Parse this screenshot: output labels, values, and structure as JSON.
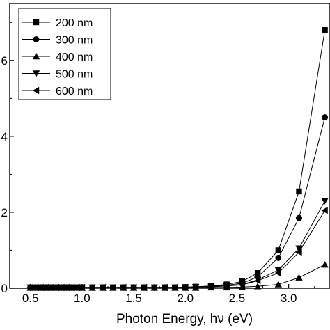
{
  "chart_data": {
    "type": "line",
    "xlabel": "Photon Energy, hν (eV)",
    "ylabel": "",
    "xlim": [
      0.3,
      3.4
    ],
    "ylim": [
      0,
      7.5
    ],
    "x_ticks": [
      0.5,
      1.0,
      1.5,
      2.0,
      2.5,
      3.0
    ],
    "x_tick_labels": [
      "0.5",
      "1.0",
      "1.5",
      "2.0",
      "2.5",
      "3.0"
    ],
    "y_ticks": [
      0,
      2,
      4,
      6
    ],
    "y_tick_labels": [
      "0",
      "2",
      "4",
      "6"
    ],
    "grid": false,
    "legend_position": "top-left",
    "series": [
      {
        "name": "200 nm",
        "marker": "square",
        "x": [
          0.5,
          0.55,
          0.6,
          0.65,
          0.7,
          0.75,
          0.8,
          0.85,
          0.9,
          0.95,
          1.0,
          1.1,
          1.2,
          1.3,
          1.4,
          1.5,
          1.6,
          1.7,
          1.8,
          1.9,
          2.0,
          2.1,
          2.25,
          2.4,
          2.55,
          2.7,
          2.9,
          3.1,
          3.35
        ],
        "y": [
          0.02,
          0.02,
          0.02,
          0.02,
          0.02,
          0.02,
          0.02,
          0.02,
          0.02,
          0.02,
          0.02,
          0.02,
          0.02,
          0.02,
          0.02,
          0.02,
          0.02,
          0.02,
          0.02,
          0.02,
          0.03,
          0.04,
          0.06,
          0.1,
          0.18,
          0.4,
          1.0,
          2.55,
          6.8
        ]
      },
      {
        "name": "300 nm",
        "marker": "circle",
        "x": [
          0.5,
          0.55,
          0.6,
          0.65,
          0.7,
          0.75,
          0.8,
          0.85,
          0.9,
          0.95,
          1.0,
          1.1,
          1.2,
          1.3,
          1.4,
          1.5,
          1.6,
          1.7,
          1.8,
          1.9,
          2.0,
          2.1,
          2.25,
          2.4,
          2.55,
          2.7,
          2.9,
          3.1,
          3.35
        ],
        "y": [
          0.02,
          0.02,
          0.02,
          0.02,
          0.02,
          0.02,
          0.02,
          0.02,
          0.02,
          0.02,
          0.02,
          0.02,
          0.02,
          0.02,
          0.02,
          0.02,
          0.02,
          0.02,
          0.02,
          0.02,
          0.02,
          0.03,
          0.05,
          0.08,
          0.13,
          0.3,
          0.8,
          1.85,
          4.5
        ]
      },
      {
        "name": "400 nm",
        "marker": "triangle-up",
        "x": [
          0.5,
          0.55,
          0.6,
          0.65,
          0.7,
          0.75,
          0.8,
          0.85,
          0.9,
          0.95,
          1.0,
          1.1,
          1.2,
          1.3,
          1.4,
          1.5,
          1.6,
          1.7,
          1.8,
          1.9,
          2.0,
          2.1,
          2.25,
          2.4,
          2.55,
          2.7,
          2.9,
          3.1,
          3.35
        ],
        "y": [
          0.01,
          0.01,
          0.01,
          0.01,
          0.01,
          0.01,
          0.01,
          0.01,
          0.01,
          0.01,
          0.01,
          0.01,
          0.01,
          0.01,
          0.01,
          0.01,
          0.01,
          0.01,
          0.01,
          0.01,
          0.01,
          0.01,
          0.02,
          0.02,
          0.03,
          0.05,
          0.1,
          0.28,
          0.62
        ]
      },
      {
        "name": "500 nm",
        "marker": "triangle-down",
        "x": [
          0.5,
          0.55,
          0.6,
          0.65,
          0.7,
          0.75,
          0.8,
          0.85,
          0.9,
          0.95,
          1.0,
          1.1,
          1.2,
          1.3,
          1.4,
          1.5,
          1.6,
          1.7,
          1.8,
          1.9,
          2.0,
          2.1,
          2.25,
          2.4,
          2.55,
          2.7,
          2.9,
          3.1,
          3.35
        ],
        "y": [
          0.02,
          0.02,
          0.02,
          0.02,
          0.02,
          0.02,
          0.02,
          0.02,
          0.02,
          0.02,
          0.02,
          0.02,
          0.02,
          0.02,
          0.02,
          0.02,
          0.02,
          0.02,
          0.02,
          0.02,
          0.02,
          0.03,
          0.04,
          0.06,
          0.1,
          0.22,
          0.48,
          1.05,
          2.3
        ]
      },
      {
        "name": "600 nm",
        "marker": "triangle-left",
        "x": [
          0.5,
          0.55,
          0.6,
          0.65,
          0.7,
          0.75,
          0.8,
          0.85,
          0.9,
          0.95,
          1.0,
          1.1,
          1.2,
          1.3,
          1.4,
          1.5,
          1.6,
          1.7,
          1.8,
          1.9,
          2.0,
          2.1,
          2.25,
          2.4,
          2.55,
          2.7,
          2.9,
          3.1,
          3.35
        ],
        "y": [
          0.02,
          0.02,
          0.02,
          0.02,
          0.02,
          0.02,
          0.02,
          0.02,
          0.02,
          0.02,
          0.02,
          0.02,
          0.02,
          0.02,
          0.02,
          0.02,
          0.02,
          0.02,
          0.02,
          0.02,
          0.02,
          0.03,
          0.04,
          0.06,
          0.09,
          0.2,
          0.4,
          0.95,
          2.05
        ]
      }
    ]
  }
}
